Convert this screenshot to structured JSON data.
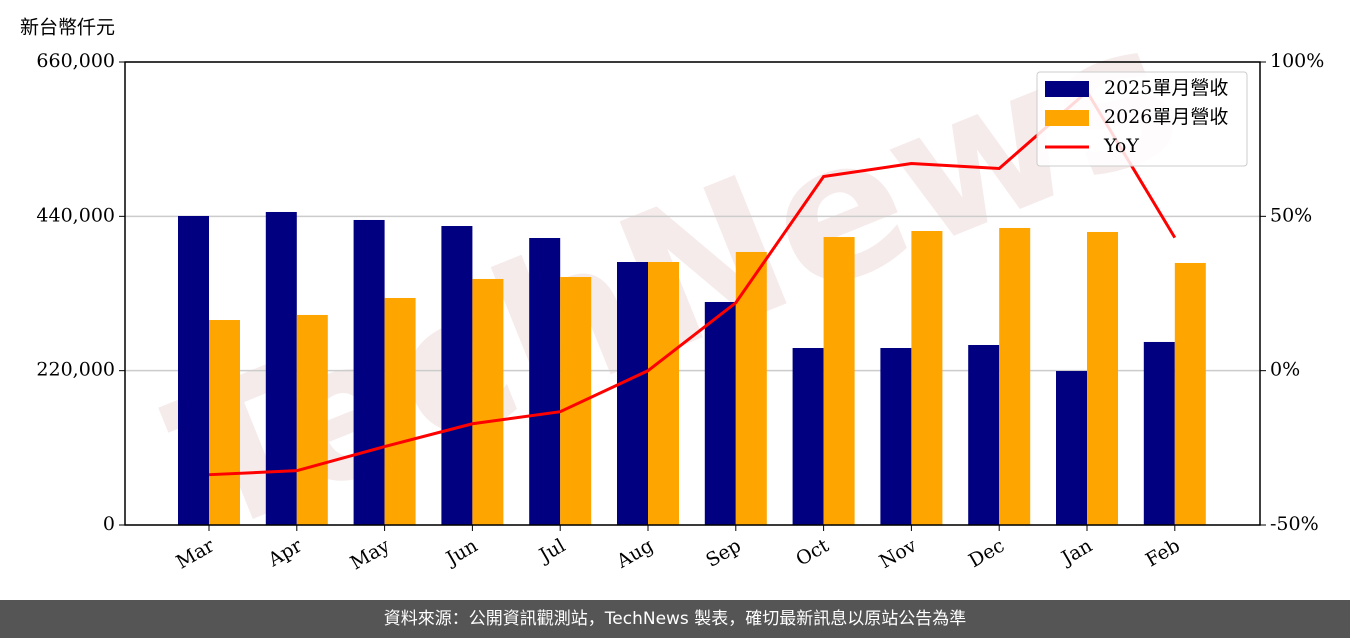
{
  "chart_data": {
    "type": "bar",
    "y_label": "新台幣仟元",
    "categories": [
      "Mar",
      "Apr",
      "May",
      "Jun",
      "Jul",
      "Aug",
      "Sep",
      "Oct",
      "Nov",
      "Dec",
      "Jan",
      "Feb"
    ],
    "series": [
      {
        "name": "2025單月營收",
        "color": "#000080",
        "values": [
          440500,
          446200,
          434800,
          426200,
          409100,
          374900,
          317900,
          252300,
          252300,
          256600,
          219500,
          260900
        ]
      },
      {
        "name": "2026單月營收",
        "color": "#ffa500",
        "values": [
          292200,
          299400,
          323600,
          350700,
          353500,
          374900,
          389200,
          410500,
          419100,
          423400,
          417700,
          373500
        ]
      },
      {
        "name": "YoY",
        "type": "line",
        "axis": "y2",
        "color": "#ff0000",
        "values": [
          -33.7,
          -32.4,
          -24.6,
          -17.2,
          -13.3,
          0,
          22,
          62.9,
          67.1,
          65.5,
          90.4,
          43.1
        ]
      }
    ],
    "ylim": [
      0,
      660000
    ],
    "yticks": [
      0,
      {
        "value": 220000,
        "label": "220,000"
      },
      {
        "value": 440000,
        "label": "440,000"
      },
      {
        "value": 660000,
        "label": "660,000"
      }
    ],
    "y2lim": [
      -50,
      100
    ],
    "y2ticks": [
      {
        "value": -50,
        "label": "-50%"
      },
      {
        "value": 0,
        "label": "0%"
      },
      {
        "value": 50,
        "label": "50%"
      },
      {
        "value": 100,
        "label": "100%"
      }
    ],
    "grid": true,
    "legend": "upper right",
    "watermark": "TechNews"
  },
  "footer": "資料來源：公開資訊觀測站，TechNews 製表，確切最新訊息以原站公告為準"
}
